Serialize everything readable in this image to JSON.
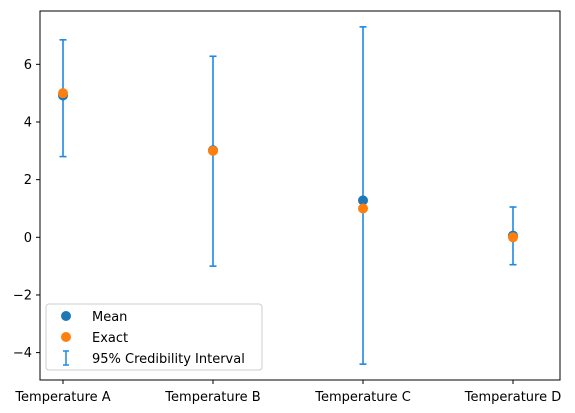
{
  "chart_data": {
    "type": "scatter",
    "categories": [
      "Temperature A",
      "Temperature B",
      "Temperature C",
      "Temperature D"
    ],
    "series": [
      {
        "name": "Mean",
        "color": "#1f77b4",
        "values": [
          4.92,
          3.02,
          1.28,
          0.06
        ]
      },
      {
        "name": "Exact",
        "color": "#ff7f0e",
        "values": [
          5.0,
          3.0,
          1.0,
          0.0
        ]
      }
    ],
    "error_bars": {
      "name": "95% Credibility Interval",
      "color": "#1e88e5",
      "lower": [
        2.8,
        -1.0,
        -4.4,
        -0.95
      ],
      "upper": [
        6.85,
        6.28,
        7.3,
        1.05
      ]
    },
    "yticks": [
      -4,
      -2,
      0,
      2,
      4,
      6
    ],
    "ytick_labels": [
      "−4",
      "−2",
      "0",
      "2",
      "4",
      "6"
    ],
    "ylim": [
      -4.95,
      7.85
    ],
    "grid": false,
    "legend_position": "lower-left"
  }
}
